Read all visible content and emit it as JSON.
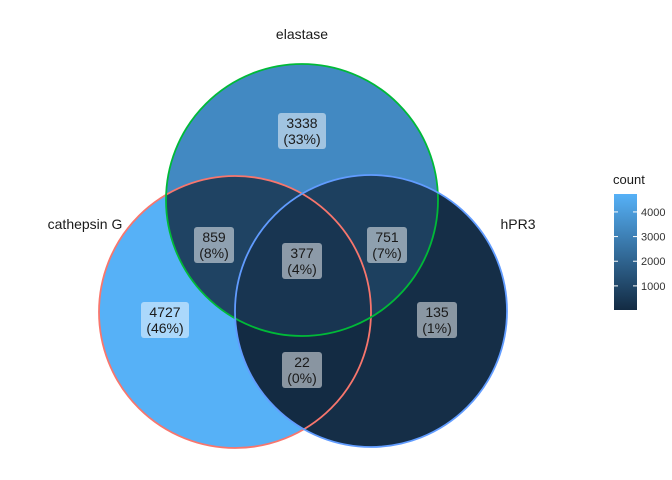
{
  "chart_data": {
    "type": "venn",
    "sets": [
      "cathepsin G",
      "elastase",
      "hPR3"
    ],
    "set_colors": {
      "cathepsin G": "#f8766d",
      "elastase": "#00ba38",
      "hPR3": "#619cff"
    },
    "regions": [
      {
        "id": "elastase_only",
        "sets": [
          "elastase"
        ],
        "count": "3338",
        "percent": "(33%)",
        "value": 3338
      },
      {
        "id": "cathepsin_only",
        "sets": [
          "cathepsin G"
        ],
        "count": "4727",
        "percent": "(46%)",
        "value": 4727
      },
      {
        "id": "hpr3_only",
        "sets": [
          "hPR3"
        ],
        "count": "135",
        "percent": "(1%)",
        "value": 135
      },
      {
        "id": "cathepsin_elastase",
        "sets": [
          "cathepsin G",
          "elastase"
        ],
        "count": "859",
        "percent": "(8%)",
        "value": 859
      },
      {
        "id": "elastase_hpr3",
        "sets": [
          "elastase",
          "hPR3"
        ],
        "count": "751",
        "percent": "(7%)",
        "value": 751
      },
      {
        "id": "cathepsin_hpr3",
        "sets": [
          "cathepsin G",
          "hPR3"
        ],
        "count": "22",
        "percent": "(0%)",
        "value": 22
      },
      {
        "id": "all_three",
        "sets": [
          "cathepsin G",
          "elastase",
          "hPR3"
        ],
        "count": "377",
        "percent": "(4%)",
        "value": 377
      }
    ],
    "legend": {
      "title": "count",
      "ticks": [
        "1000",
        "2000",
        "3000",
        "4000"
      ],
      "tick_values": [
        1000,
        2000,
        3000,
        4000
      ],
      "min": 22,
      "max": 4727,
      "low_color": "#132b43",
      "high_color": "#56b1f7"
    }
  }
}
